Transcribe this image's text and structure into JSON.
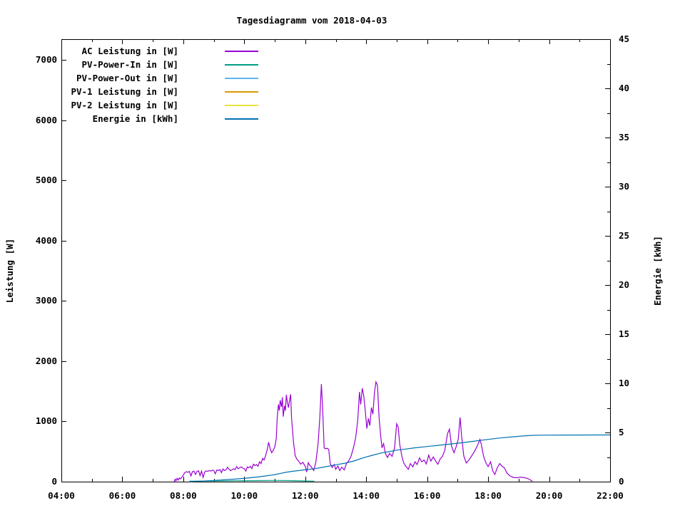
{
  "chart_data": {
    "type": "line",
    "title": "Tagesdiagramm vom 2018-04-03",
    "ylabel": "Leistung [W]",
    "y2label": "Energie [kWh]",
    "xlabel": "",
    "grid": false,
    "legend_position": "top-left-inside",
    "x_axis": {
      "min": 4,
      "max": 22,
      "tick_interval": 2,
      "minor_interval": 1,
      "tick_labels": [
        "04:00",
        "06:00",
        "08:00",
        "10:00",
        "12:00",
        "14:00",
        "16:00",
        "18:00",
        "20:00",
        "22:00"
      ]
    },
    "y_left": {
      "min": 0,
      "max_at_frame_top": 7343,
      "tick_interval": 1000,
      "tick_max": 7000,
      "tick_labels": [
        "0",
        "1000",
        "2000",
        "3000",
        "4000",
        "5000",
        "6000",
        "7000"
      ]
    },
    "y_right": {
      "min": 0,
      "max": 45,
      "tick_interval": 5,
      "minor_interval": 2.5,
      "tick_labels": [
        "0",
        "5",
        "10",
        "15",
        "20",
        "25",
        "30",
        "35",
        "40",
        "45"
      ]
    },
    "series": [
      {
        "id": "ac-leistung",
        "label": "AC Leistung in [W]",
        "color": "#9902d3",
        "axis": "left",
        "points": [
          [
            7.7,
            0
          ],
          [
            7.73,
            40
          ],
          [
            7.76,
            15
          ],
          [
            7.8,
            55
          ],
          [
            7.83,
            25
          ],
          [
            7.87,
            60
          ],
          [
            7.9,
            45
          ],
          [
            7.95,
            70
          ],
          [
            8.0,
            110
          ],
          [
            8.05,
            150
          ],
          [
            8.1,
            165
          ],
          [
            8.15,
            155
          ],
          [
            8.2,
            170
          ],
          [
            8.25,
            95
          ],
          [
            8.3,
            165
          ],
          [
            8.35,
            175
          ],
          [
            8.4,
            120
          ],
          [
            8.45,
            170
          ],
          [
            8.5,
            180
          ],
          [
            8.55,
            100
          ],
          [
            8.6,
            175
          ],
          [
            8.65,
            70
          ],
          [
            8.7,
            160
          ],
          [
            8.75,
            180
          ],
          [
            8.8,
            170
          ],
          [
            8.85,
            185
          ],
          [
            8.9,
            175
          ],
          [
            8.95,
            190
          ],
          [
            9.0,
            185
          ],
          [
            9.05,
            130
          ],
          [
            9.1,
            195
          ],
          [
            9.15,
            185
          ],
          [
            9.2,
            200
          ],
          [
            9.25,
            150
          ],
          [
            9.3,
            210
          ],
          [
            9.35,
            185
          ],
          [
            9.4,
            195
          ],
          [
            9.45,
            240
          ],
          [
            9.5,
            205
          ],
          [
            9.55,
            185
          ],
          [
            9.6,
            195
          ],
          [
            9.65,
            215
          ],
          [
            9.7,
            200
          ],
          [
            9.75,
            250
          ],
          [
            9.8,
            215
          ],
          [
            9.85,
            230
          ],
          [
            9.9,
            245
          ],
          [
            9.95,
            225
          ],
          [
            10.0,
            215
          ],
          [
            10.05,
            175
          ],
          [
            10.1,
            245
          ],
          [
            10.15,
            230
          ],
          [
            10.2,
            255
          ],
          [
            10.25,
            215
          ],
          [
            10.3,
            290
          ],
          [
            10.35,
            265
          ],
          [
            10.4,
            285
          ],
          [
            10.45,
            255
          ],
          [
            10.5,
            330
          ],
          [
            10.55,
            300
          ],
          [
            10.6,
            385
          ],
          [
            10.65,
            360
          ],
          [
            10.7,
            430
          ],
          [
            10.75,
            530
          ],
          [
            10.8,
            655
          ],
          [
            10.85,
            545
          ],
          [
            10.9,
            480
          ],
          [
            10.95,
            520
          ],
          [
            11.0,
            575
          ],
          [
            11.05,
            720
          ],
          [
            11.08,
            1060
          ],
          [
            11.12,
            1280
          ],
          [
            11.15,
            1180
          ],
          [
            11.18,
            1350
          ],
          [
            11.22,
            1240
          ],
          [
            11.25,
            1400
          ],
          [
            11.28,
            1080
          ],
          [
            11.32,
            1260
          ],
          [
            11.35,
            1180
          ],
          [
            11.38,
            1440
          ],
          [
            11.42,
            1300
          ],
          [
            11.45,
            1230
          ],
          [
            11.48,
            1330
          ],
          [
            11.52,
            1450
          ],
          [
            11.55,
            1060
          ],
          [
            11.58,
            880
          ],
          [
            11.62,
            640
          ],
          [
            11.67,
            430
          ],
          [
            11.72,
            380
          ],
          [
            11.78,
            340
          ],
          [
            11.85,
            290
          ],
          [
            11.92,
            320
          ],
          [
            12.0,
            255
          ],
          [
            12.05,
            160
          ],
          [
            12.1,
            315
          ],
          [
            12.15,
            270
          ],
          [
            12.2,
            245
          ],
          [
            12.28,
            185
          ],
          [
            12.35,
            330
          ],
          [
            12.42,
            620
          ],
          [
            12.48,
            1080
          ],
          [
            12.53,
            1620
          ],
          [
            12.57,
            1230
          ],
          [
            12.62,
            560
          ],
          [
            12.67,
            545
          ],
          [
            12.72,
            555
          ],
          [
            12.77,
            535
          ],
          [
            12.82,
            300
          ],
          [
            12.88,
            235
          ],
          [
            12.95,
            285
          ],
          [
            13.0,
            205
          ],
          [
            13.07,
            260
          ],
          [
            13.13,
            185
          ],
          [
            13.2,
            240
          ],
          [
            13.28,
            195
          ],
          [
            13.35,
            300
          ],
          [
            13.42,
            340
          ],
          [
            13.5,
            420
          ],
          [
            13.58,
            560
          ],
          [
            13.65,
            720
          ],
          [
            13.72,
            1010
          ],
          [
            13.78,
            1490
          ],
          [
            13.82,
            1280
          ],
          [
            13.87,
            1550
          ],
          [
            13.92,
            1420
          ],
          [
            13.97,
            1180
          ],
          [
            14.02,
            880
          ],
          [
            14.07,
            1050
          ],
          [
            14.12,
            930
          ],
          [
            14.17,
            1230
          ],
          [
            14.22,
            1120
          ],
          [
            14.27,
            1480
          ],
          [
            14.32,
            1655
          ],
          [
            14.37,
            1600
          ],
          [
            14.42,
            1080
          ],
          [
            14.47,
            780
          ],
          [
            14.52,
            560
          ],
          [
            14.57,
            630
          ],
          [
            14.63,
            470
          ],
          [
            14.7,
            400
          ],
          [
            14.77,
            470
          ],
          [
            14.85,
            420
          ],
          [
            14.93,
            560
          ],
          [
            15.0,
            960
          ],
          [
            15.05,
            905
          ],
          [
            15.1,
            620
          ],
          [
            15.17,
            420
          ],
          [
            15.23,
            310
          ],
          [
            15.3,
            255
          ],
          [
            15.38,
            205
          ],
          [
            15.45,
            300
          ],
          [
            15.53,
            245
          ],
          [
            15.6,
            330
          ],
          [
            15.67,
            285
          ],
          [
            15.75,
            395
          ],
          [
            15.82,
            330
          ],
          [
            15.9,
            360
          ],
          [
            15.97,
            295
          ],
          [
            16.05,
            440
          ],
          [
            16.12,
            340
          ],
          [
            16.2,
            410
          ],
          [
            16.28,
            340
          ],
          [
            16.35,
            290
          ],
          [
            16.43,
            380
          ],
          [
            16.5,
            420
          ],
          [
            16.58,
            520
          ],
          [
            16.67,
            800
          ],
          [
            16.73,
            870
          ],
          [
            16.8,
            590
          ],
          [
            16.88,
            480
          ],
          [
            16.95,
            580
          ],
          [
            17.02,
            700
          ],
          [
            17.08,
            1065
          ],
          [
            17.13,
            760
          ],
          [
            17.2,
            430
          ],
          [
            17.28,
            310
          ],
          [
            17.37,
            360
          ],
          [
            17.45,
            420
          ],
          [
            17.55,
            500
          ],
          [
            17.65,
            600
          ],
          [
            17.73,
            700
          ],
          [
            17.78,
            610
          ],
          [
            17.85,
            420
          ],
          [
            17.93,
            310
          ],
          [
            18.0,
            250
          ],
          [
            18.08,
            330
          ],
          [
            18.15,
            180
          ],
          [
            18.22,
            120
          ],
          [
            18.3,
            230
          ],
          [
            18.38,
            300
          ],
          [
            18.45,
            260
          ],
          [
            18.53,
            230
          ],
          [
            18.62,
            140
          ],
          [
            18.72,
            95
          ],
          [
            18.83,
            70
          ],
          [
            18.95,
            65
          ],
          [
            19.05,
            75
          ],
          [
            19.15,
            70
          ],
          [
            19.25,
            60
          ],
          [
            19.35,
            40
          ],
          [
            19.45,
            5
          ]
        ]
      },
      {
        "id": "pv-power-in",
        "label": "PV-Power-In in [W]",
        "color": "#009d82",
        "axis": "left",
        "points": [
          [
            8.2,
            8
          ],
          [
            8.6,
            10
          ],
          [
            9.0,
            12
          ],
          [
            9.5,
            14
          ],
          [
            10.0,
            16
          ],
          [
            10.5,
            18
          ],
          [
            11.0,
            20
          ],
          [
            11.5,
            18
          ],
          [
            12.0,
            12
          ],
          [
            12.3,
            8
          ]
        ]
      },
      {
        "id": "pv-power-out",
        "label": "PV-Power-Out in [W]",
        "color": "#5db5ea",
        "axis": "left",
        "points": []
      },
      {
        "id": "pv-1-leistung",
        "label": "PV-1 Leistung in [W]",
        "color": "#db9a00",
        "axis": "left",
        "points": []
      },
      {
        "id": "pv-2-leistung",
        "label": "PV-2 Leistung in [W]",
        "color": "#eee23c",
        "axis": "left",
        "points": []
      },
      {
        "id": "energie",
        "label": "Energie in [kWh]",
        "color": "#0072b2",
        "axis": "right",
        "points": [
          [
            8.2,
            0.0
          ],
          [
            8.5,
            0.05
          ],
          [
            9.0,
            0.12
          ],
          [
            9.5,
            0.22
          ],
          [
            10.0,
            0.33
          ],
          [
            10.5,
            0.5
          ],
          [
            10.8,
            0.62
          ],
          [
            11.0,
            0.72
          ],
          [
            11.2,
            0.85
          ],
          [
            11.4,
            0.97
          ],
          [
            11.6,
            1.06
          ],
          [
            11.8,
            1.13
          ],
          [
            12.0,
            1.2
          ],
          [
            12.3,
            1.32
          ],
          [
            12.6,
            1.48
          ],
          [
            13.0,
            1.72
          ],
          [
            13.3,
            1.88
          ],
          [
            13.6,
            2.1
          ],
          [
            13.9,
            2.42
          ],
          [
            14.2,
            2.68
          ],
          [
            14.5,
            2.92
          ],
          [
            14.8,
            3.08
          ],
          [
            15.0,
            3.2
          ],
          [
            15.3,
            3.32
          ],
          [
            15.6,
            3.44
          ],
          [
            16.0,
            3.57
          ],
          [
            16.4,
            3.7
          ],
          [
            16.8,
            3.84
          ],
          [
            17.2,
            3.98
          ],
          [
            17.6,
            4.14
          ],
          [
            18.0,
            4.3
          ],
          [
            18.4,
            4.44
          ],
          [
            18.8,
            4.56
          ],
          [
            19.1,
            4.64
          ],
          [
            19.4,
            4.7
          ],
          [
            19.8,
            4.73
          ],
          [
            20.5,
            4.74
          ],
          [
            21.5,
            4.75
          ],
          [
            22.0,
            4.75
          ]
        ]
      }
    ]
  }
}
